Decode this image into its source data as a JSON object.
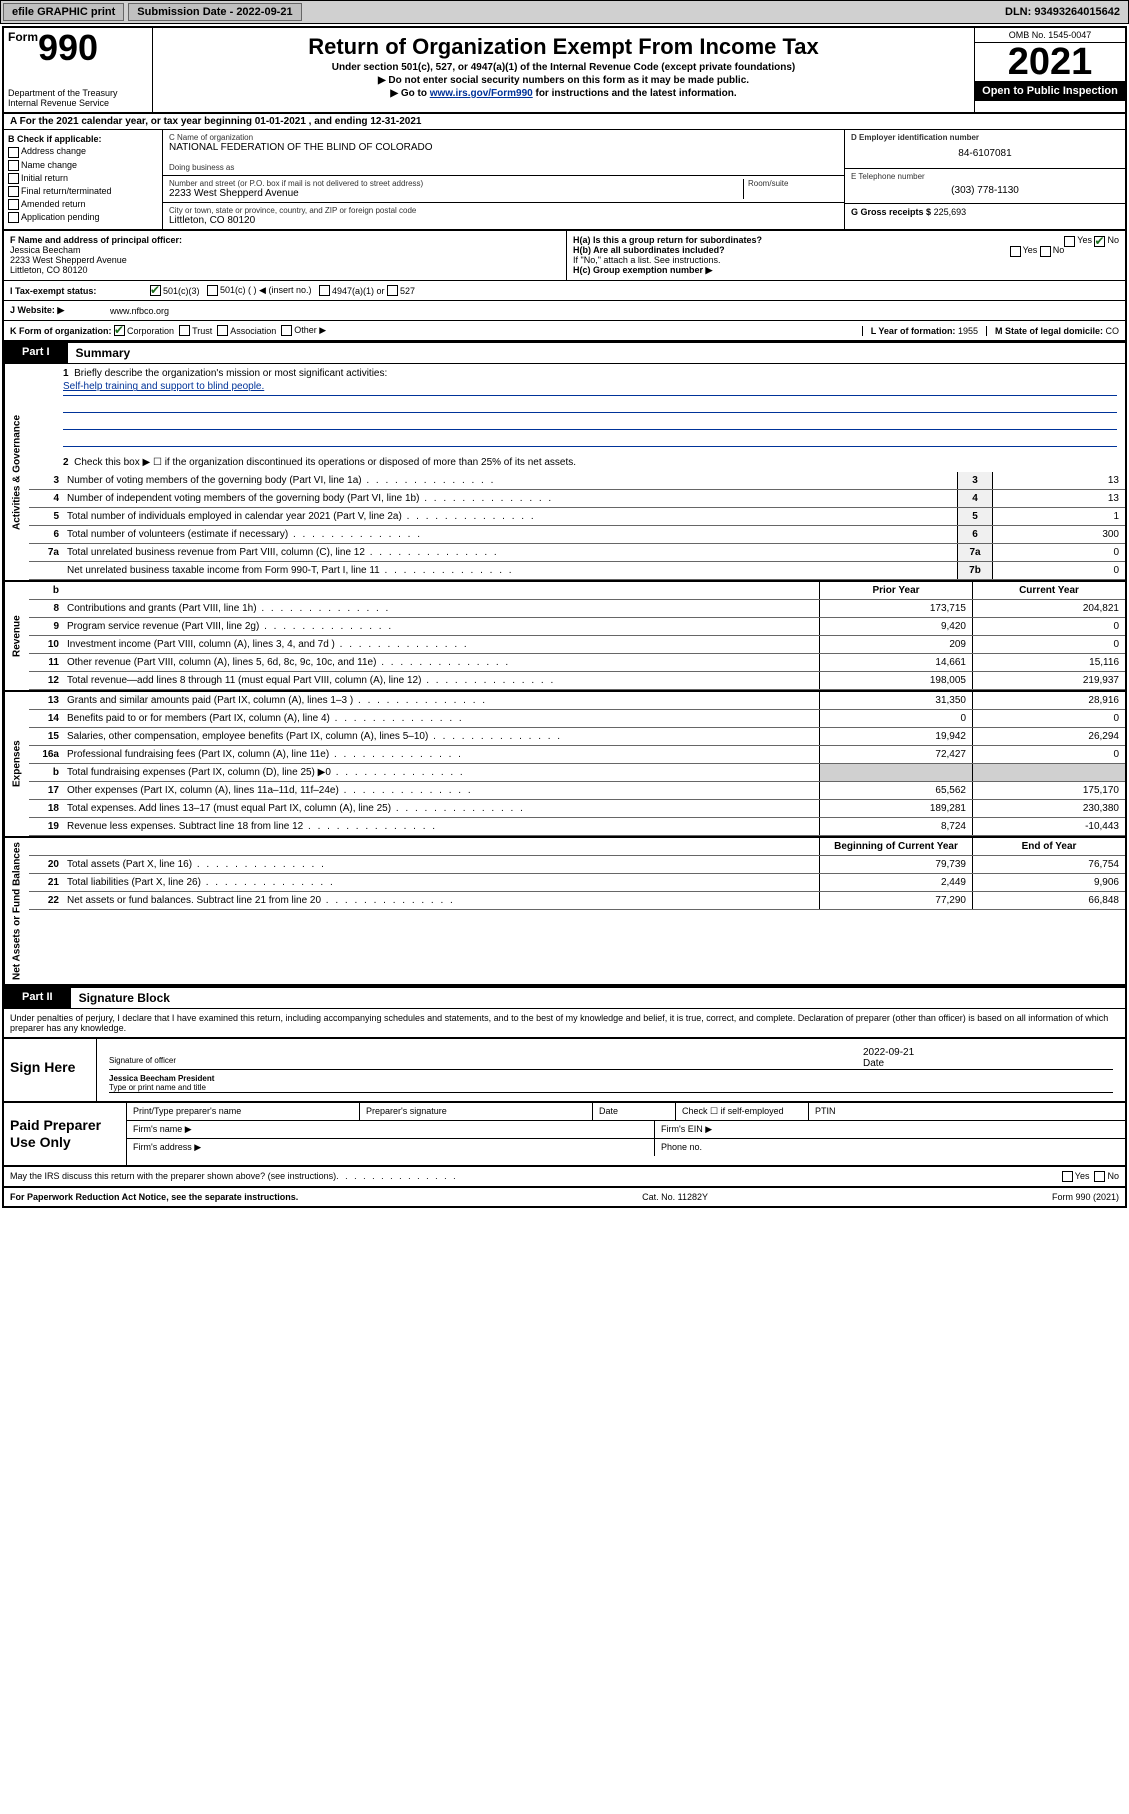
{
  "topbar": {
    "efile_btn": "efile GRAPHIC print",
    "submission_label": "Submission Date - 2022-09-21",
    "dln": "DLN: 93493264015642"
  },
  "header": {
    "form_prefix": "Form",
    "form_num": "990",
    "dept": "Department of the Treasury",
    "irs": "Internal Revenue Service",
    "title": "Return of Organization Exempt From Income Tax",
    "sub1": "Under section 501(c), 527, or 4947(a)(1) of the Internal Revenue Code (except private foundations)",
    "sub2": "▶ Do not enter social security numbers on this form as it may be made public.",
    "sub3_pre": "▶ Go to ",
    "sub3_link": "www.irs.gov/Form990",
    "sub3_post": " for instructions and the latest information.",
    "omb": "OMB No. 1545-0047",
    "year": "2021",
    "open": "Open to Public Inspection"
  },
  "row_a": "A  For the 2021 calendar year, or tax year beginning 01-01-2021   , and ending 12-31-2021",
  "section_b": {
    "b_label": "B Check if applicable:",
    "checks": {
      "addr": "Address change",
      "name": "Name change",
      "initial": "Initial return",
      "final": "Final return/terminated",
      "amended": "Amended return",
      "app": "Application pending"
    },
    "c_name_lbl": "C Name of organization",
    "c_name": "NATIONAL FEDERATION OF THE BLIND OF COLORADO",
    "dba_lbl": "Doing business as",
    "street_lbl": "Number and street (or P.O. box if mail is not delivered to street address)",
    "street": "2233 West Shepperd Avenue",
    "room_lbl": "Room/suite",
    "city_lbl": "City or town, state or province, country, and ZIP or foreign postal code",
    "city": "Littleton, CO  80120",
    "d_lbl": "D Employer identification number",
    "d_val": "84-6107081",
    "e_lbl": "E Telephone number",
    "e_val": "(303) 778-1130",
    "g_lbl": "G Gross receipts $",
    "g_val": "225,693"
  },
  "section_f": {
    "f_lbl": "F Name and address of principal officer:",
    "f_name": "Jessica Beecham",
    "f_addr1": "2233 West Shepperd Avenue",
    "f_addr2": "Littleton, CO  80120",
    "ha_lbl": "H(a)  Is this a group return for subordinates?",
    "hb_lbl": "H(b)  Are all subordinates included?",
    "h_note": "If \"No,\" attach a list. See instructions.",
    "hc_lbl": "H(c)  Group exemption number ▶",
    "yes": "Yes",
    "no": "No"
  },
  "row_i": {
    "label": "I   Tax-exempt status:",
    "opt1": "501(c)(3)",
    "opt2": "501(c) (  ) ◀ (insert no.)",
    "opt3": "4947(a)(1) or",
    "opt4": "527"
  },
  "row_j": {
    "label": "J   Website: ▶",
    "val": "www.nfbco.org"
  },
  "row_k": {
    "label": "K Form of organization:",
    "opt1": "Corporation",
    "opt2": "Trust",
    "opt3": "Association",
    "opt4": "Other ▶",
    "l_label": "L Year of formation: ",
    "l_val": "1955",
    "m_label": "M State of legal domicile: ",
    "m_val": "CO"
  },
  "part1": {
    "tab": "Part I",
    "title": "Summary"
  },
  "summary": {
    "q1_label": "Briefly describe the organization's mission or most significant activities:",
    "q1_val": "Self-help training and support to blind people.",
    "q2_label": "Check this box ▶ ☐  if the organization discontinued its operations or disposed of more than 25% of its net assets.",
    "rows_simple": [
      {
        "num": "3",
        "text": "Number of voting members of the governing body (Part VI, line 1a)",
        "box": "3",
        "val": "13"
      },
      {
        "num": "4",
        "text": "Number of independent voting members of the governing body (Part VI, line 1b)",
        "box": "4",
        "val": "13"
      },
      {
        "num": "5",
        "text": "Total number of individuals employed in calendar year 2021 (Part V, line 2a)",
        "box": "5",
        "val": "1"
      },
      {
        "num": "6",
        "text": "Total number of volunteers (estimate if necessary)",
        "box": "6",
        "val": "300"
      },
      {
        "num": "7a",
        "text": "Total unrelated business revenue from Part VIII, column (C), line 12",
        "box": "7a",
        "val": "0"
      },
      {
        "num": "",
        "text": "Net unrelated business taxable income from Form 990-T, Part I, line 11",
        "box": "7b",
        "val": "0"
      }
    ],
    "col_prior": "Prior Year",
    "col_curr": "Current Year",
    "col_begin": "Beginning of Current Year",
    "col_end": "End of Year",
    "revenue": [
      {
        "num": "8",
        "text": "Contributions and grants (Part VIII, line 1h)",
        "prior": "173,715",
        "curr": "204,821"
      },
      {
        "num": "9",
        "text": "Program service revenue (Part VIII, line 2g)",
        "prior": "9,420",
        "curr": "0"
      },
      {
        "num": "10",
        "text": "Investment income (Part VIII, column (A), lines 3, 4, and 7d )",
        "prior": "209",
        "curr": "0"
      },
      {
        "num": "11",
        "text": "Other revenue (Part VIII, column (A), lines 5, 6d, 8c, 9c, 10c, and 11e)",
        "prior": "14,661",
        "curr": "15,116"
      },
      {
        "num": "12",
        "text": "Total revenue—add lines 8 through 11 (must equal Part VIII, column (A), line 12)",
        "prior": "198,005",
        "curr": "219,937"
      }
    ],
    "expenses": [
      {
        "num": "13",
        "text": "Grants and similar amounts paid (Part IX, column (A), lines 1–3 )",
        "prior": "31,350",
        "curr": "28,916"
      },
      {
        "num": "14",
        "text": "Benefits paid to or for members (Part IX, column (A), line 4)",
        "prior": "0",
        "curr": "0"
      },
      {
        "num": "15",
        "text": "Salaries, other compensation, employee benefits (Part IX, column (A), lines 5–10)",
        "prior": "19,942",
        "curr": "26,294"
      },
      {
        "num": "16a",
        "text": "Professional fundraising fees (Part IX, column (A), line 11e)",
        "prior": "72,427",
        "curr": "0"
      },
      {
        "num": "b",
        "text": "Total fundraising expenses (Part IX, column (D), line 25) ▶0",
        "prior": "",
        "curr": "",
        "shaded": true
      },
      {
        "num": "17",
        "text": "Other expenses (Part IX, column (A), lines 11a–11d, 11f–24e)",
        "prior": "65,562",
        "curr": "175,170"
      },
      {
        "num": "18",
        "text": "Total expenses. Add lines 13–17 (must equal Part IX, column (A), line 25)",
        "prior": "189,281",
        "curr": "230,380"
      },
      {
        "num": "19",
        "text": "Revenue less expenses. Subtract line 18 from line 12",
        "prior": "8,724",
        "curr": "-10,443"
      }
    ],
    "netassets": [
      {
        "num": "20",
        "text": "Total assets (Part X, line 16)",
        "prior": "79,739",
        "curr": "76,754"
      },
      {
        "num": "21",
        "text": "Total liabilities (Part X, line 26)",
        "prior": "2,449",
        "curr": "9,906"
      },
      {
        "num": "22",
        "text": "Net assets or fund balances. Subtract line 21 from line 20",
        "prior": "77,290",
        "curr": "66,848"
      }
    ],
    "tabs": {
      "gov": "Activities & Governance",
      "rev": "Revenue",
      "exp": "Expenses",
      "net": "Net Assets or Fund Balances"
    },
    "b_num": "b"
  },
  "part2": {
    "tab": "Part II",
    "title": "Signature Block"
  },
  "penalty": "Under penalties of perjury, I declare that I have examined this return, including accompanying schedules and statements, and to the best of my knowledge and belief, it is true, correct, and complete. Declaration of preparer (other than officer) is based on all information of which preparer has any knowledge.",
  "sign": {
    "left": "Sign Here",
    "sig_lbl": "Signature of officer",
    "date_lbl": "Date",
    "date_val": "2022-09-21",
    "name": "Jessica Beecham  President",
    "name_lbl": "Type or print name and title"
  },
  "paid": {
    "left": "Paid Preparer Use Only",
    "h1": "Print/Type preparer's name",
    "h2": "Preparer's signature",
    "h3": "Date",
    "h4_chk": "Check ☐ if self-employed",
    "h5": "PTIN",
    "firm_name": "Firm's name  ▶",
    "firm_ein": "Firm's EIN ▶",
    "firm_addr": "Firm's address ▶",
    "phone": "Phone no."
  },
  "footer": {
    "discuss": "May the IRS discuss this return with the preparer shown above? (see instructions)",
    "yes": "Yes",
    "no": "No",
    "pra": "For Paperwork Reduction Act Notice, see the separate instructions.",
    "cat": "Cat. No. 11282Y",
    "form": "Form 990 (2021)"
  }
}
